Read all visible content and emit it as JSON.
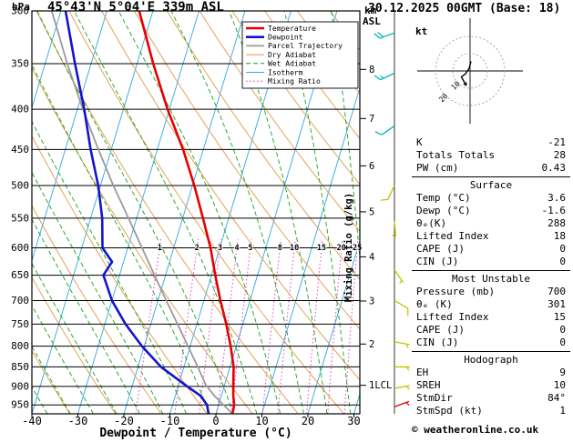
{
  "header": {
    "pressure_unit": "hPa",
    "station": "45°43'N 5°04'E 339m ASL",
    "datetime": "30.12.2025 00GMT (Base: 18)"
  },
  "footer": {
    "credit": "© weatheronline.co.uk"
  },
  "axes": {
    "xlabel": "Dewpoint / Temperature (°C)",
    "mixing_ratio_axis_label": "Mixing Ratio (g/kg)",
    "km_axis_label_line1": "km",
    "km_axis_label_line2": "ASL",
    "pressure_ticks": [
      300,
      350,
      400,
      450,
      500,
      550,
      600,
      650,
      700,
      750,
      800,
      850,
      900,
      950
    ],
    "temp_ticks": [
      -40,
      -30,
      -20,
      -10,
      0,
      10,
      20,
      30
    ],
    "km_ticks": [
      {
        "km": 2,
        "p": 795
      },
      {
        "km": 3,
        "p": 701
      },
      {
        "km": 4,
        "p": 616
      },
      {
        "km": 5,
        "p": 540
      },
      {
        "km": 6,
        "p": 472
      },
      {
        "km": 7,
        "p": 411
      },
      {
        "km": 8,
        "p": 356
      }
    ],
    "lcl_label": "1LCL",
    "lcl_pressure": 897,
    "mixing_ratio_values": [
      1,
      2,
      3,
      4,
      5,
      8,
      10,
      15,
      20,
      25
    ]
  },
  "legend": {
    "items": [
      {
        "label": "Temperature",
        "key": "temperature"
      },
      {
        "label": "Dewpoint",
        "key": "dewpoint"
      },
      {
        "label": "Parcel Trajectory",
        "key": "parcel"
      },
      {
        "label": "Dry Adiabat",
        "key": "dry_adiabat"
      },
      {
        "label": "Wet Adiabat",
        "key": "wet_adiabat"
      },
      {
        "label": "Isotherm",
        "key": "isotherm"
      },
      {
        "label": "Mixing Ratio",
        "key": "mixing_ratio"
      }
    ]
  },
  "colors": {
    "temperature": "#e60000",
    "dewpoint": "#1414cc",
    "parcel": "#9a9a9a",
    "dry_adiabat": "#e09a48",
    "wet_adiabat": "#19a319",
    "isotherm": "#30a8e0",
    "mixing_ratio": "#e03ec8",
    "axis": "#000000",
    "barb_high": "#00b4b4",
    "barb_mid": "#c3c300",
    "barb_low": "#e60000"
  },
  "chart_data": {
    "type": "line",
    "subtype": "skewt_log_p_sounding",
    "title": "45°43'N 5°04'E 339m ASL",
    "xlabel": "Dewpoint / Temperature (°C)",
    "ylabel": "hPa",
    "x_range": [
      -40,
      35
    ],
    "pressure_range_hPa": [
      300,
      975
    ],
    "skew": 0.3,
    "grid": "horizontal pressure lines every 50 hPa; isotherms every 10 °C",
    "legend_position": "top-right-inside",
    "series": [
      {
        "name": "Temperature",
        "key": "temperature",
        "width": 2.6,
        "points_p_T": [
          [
            975,
            3.6
          ],
          [
            950,
            3.4
          ],
          [
            925,
            2.6
          ],
          [
            900,
            2.0
          ],
          [
            850,
            0.8
          ],
          [
            800,
            -1.2
          ],
          [
            750,
            -3.6
          ],
          [
            700,
            -6.4
          ],
          [
            650,
            -9.2
          ],
          [
            600,
            -12.0
          ],
          [
            550,
            -15.6
          ],
          [
            500,
            -19.6
          ],
          [
            450,
            -24.4
          ],
          [
            400,
            -30.4
          ],
          [
            350,
            -36.5
          ],
          [
            300,
            -43.0
          ]
        ]
      },
      {
        "name": "Dewpoint",
        "key": "dewpoint",
        "width": 2.6,
        "points_p_T": [
          [
            975,
            -1.6
          ],
          [
            950,
            -2.5
          ],
          [
            925,
            -4.5
          ],
          [
            900,
            -8.0
          ],
          [
            850,
            -15.0
          ],
          [
            800,
            -20.5
          ],
          [
            750,
            -25.5
          ],
          [
            700,
            -30.0
          ],
          [
            650,
            -33.5
          ],
          [
            625,
            -32.5
          ],
          [
            600,
            -35.5
          ],
          [
            550,
            -37.5
          ],
          [
            500,
            -40.5
          ],
          [
            450,
            -44.5
          ],
          [
            400,
            -48.5
          ],
          [
            350,
            -53.5
          ],
          [
            300,
            -59.0
          ]
        ]
      },
      {
        "name": "Parcel Trajectory",
        "key": "parcel",
        "width": 1.8,
        "points_p_T": [
          [
            975,
            3.6
          ],
          [
            925,
            -1.5
          ],
          [
            897,
            -4.0
          ],
          [
            850,
            -7.0
          ],
          [
            800,
            -10.5
          ],
          [
            750,
            -14.2
          ],
          [
            700,
            -18.2
          ],
          [
            650,
            -22.4
          ],
          [
            600,
            -26.9
          ],
          [
            550,
            -31.8
          ],
          [
            500,
            -37.2
          ],
          [
            450,
            -42.8
          ],
          [
            400,
            -48.8
          ],
          [
            350,
            -55.2
          ],
          [
            300,
            -62.0
          ]
        ]
      }
    ],
    "isotherms_c": {
      "from": -120,
      "to": 40,
      "step": 10
    },
    "dry_adiabats_theta_c": {
      "from": -40,
      "to": 130,
      "step": 10
    },
    "wet_adiabats_thetaw_c": {
      "from": -40,
      "to": 45,
      "step": 5
    },
    "wind_barbs": [
      {
        "p": 320,
        "dir_deg": 250,
        "speed_kt": 20,
        "band": "high"
      },
      {
        "p": 360,
        "dir_deg": 245,
        "speed_kt": 15,
        "band": "high"
      },
      {
        "p": 420,
        "dir_deg": 235,
        "speed_kt": 10,
        "band": "high"
      },
      {
        "p": 500,
        "dir_deg": 205,
        "speed_kt": 10,
        "band": "mid"
      },
      {
        "p": 555,
        "dir_deg": 175,
        "speed_kt": 5,
        "band": "mid"
      },
      {
        "p": 640,
        "dir_deg": 145,
        "speed_kt": 5,
        "band": "mid"
      },
      {
        "p": 700,
        "dir_deg": 120,
        "speed_kt": 10,
        "band": "mid"
      },
      {
        "p": 790,
        "dir_deg": 100,
        "speed_kt": 5,
        "band": "mid"
      },
      {
        "p": 850,
        "dir_deg": 90,
        "speed_kt": 5,
        "band": "mid"
      },
      {
        "p": 905,
        "dir_deg": 80,
        "speed_kt": 5,
        "band": "mid"
      },
      {
        "p": 955,
        "dir_deg": 70,
        "speed_kt": 3,
        "band": "low"
      }
    ]
  },
  "hodograph": {
    "unit_label": "kt",
    "rings_kt": [
      10,
      20
    ],
    "trace_uv_kt": [
      [
        0.5,
        5.5
      ],
      [
        -0.5,
        1.5
      ],
      [
        -2.5,
        -1.5
      ],
      [
        -5,
        -3.5
      ],
      [
        -3,
        -7
      ]
    ]
  },
  "stats_panel": {
    "sections": [
      {
        "title": "",
        "rows": [
          {
            "label": "K",
            "value": "-21"
          },
          {
            "label": "Totals Totals",
            "value": "28"
          },
          {
            "label": "PW (cm)",
            "value": "0.43"
          }
        ]
      },
      {
        "title": "Surface",
        "rows": [
          {
            "label": "Temp (°C)",
            "value": "3.6"
          },
          {
            "label": "Dewp (°C)",
            "value": "-1.6"
          },
          {
            "label": "θₑ(K)",
            "value": "288"
          },
          {
            "label": "Lifted Index",
            "value": "18"
          },
          {
            "label": "CAPE (J)",
            "value": "0"
          },
          {
            "label": "CIN (J)",
            "value": "0"
          }
        ]
      },
      {
        "title": "Most Unstable",
        "rows": [
          {
            "label": "Pressure (mb)",
            "value": "700"
          },
          {
            "label": "θₑ (K)",
            "value": "301"
          },
          {
            "label": "Lifted Index",
            "value": "15"
          },
          {
            "label": "CAPE (J)",
            "value": "0"
          },
          {
            "label": "CIN (J)",
            "value": "0"
          }
        ]
      },
      {
        "title": "Hodograph",
        "rows": [
          {
            "label": "EH",
            "value": "9"
          },
          {
            "label": "SREH",
            "value": "10"
          },
          {
            "label": "StmDir",
            "value": "84°"
          },
          {
            "label": "StmSpd (kt)",
            "value": "1"
          }
        ]
      }
    ]
  }
}
